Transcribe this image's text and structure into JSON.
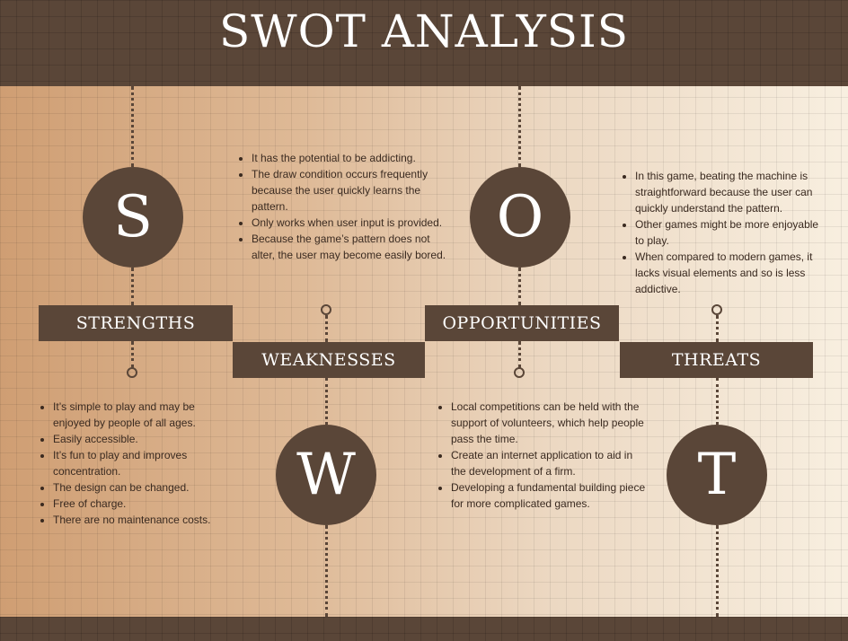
{
  "title": "SWOT ANALYSIS",
  "colors": {
    "dark_brown": "#5a4638",
    "text": "#3a2a20",
    "white": "#ffffff"
  },
  "sections": [
    {
      "letter": "S",
      "label": "STRENGTHS",
      "points": [
        "It’s simple to play and may be enjoyed by people of all ages.",
        "Easily accessible.",
        "It’s fun to play and improves concentration.",
        "The design can be changed.",
        "Free of charge.",
        "There are no maintenance costs."
      ]
    },
    {
      "letter": "W",
      "label": "WEAKNESSES",
      "points": [
        "It has the potential to be addicting.",
        "The draw condition occurs frequently because the user quickly learns the pattern.",
        "Only works when user input is provided.",
        "Because the game’s pattern does not alter, the user may become easily bored."
      ]
    },
    {
      "letter": "O",
      "label": "OPPORTUNITIES",
      "points": [
        "Local competitions can be held with the support of volunteers, which help people pass the time.",
        "Create an internet application to aid in the development of a firm.",
        "Developing a fundamental building piece for more complicated games."
      ]
    },
    {
      "letter": "T",
      "label": "THREATS",
      "points": [
        "In this game, beating the machine is straightforward because the user can quickly understand the pattern.",
        "Other games might be more enjoyable to play.",
        "When compared to modern games, it lacks visual elements and so is less addictive."
      ]
    }
  ]
}
